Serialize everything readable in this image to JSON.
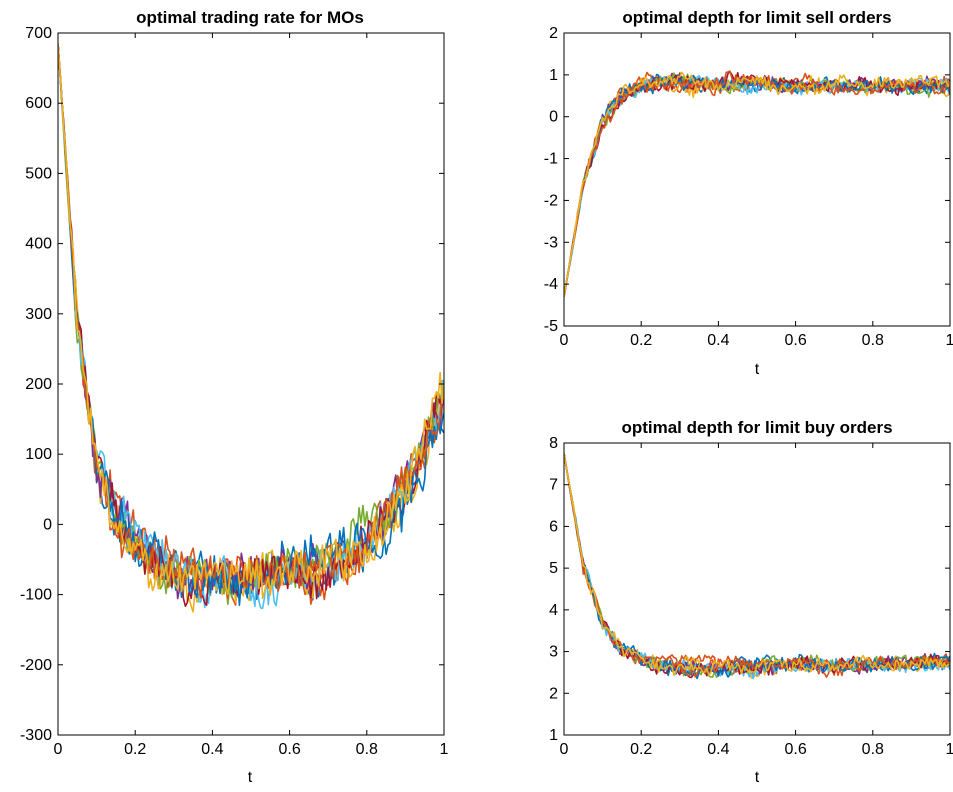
{
  "colors": [
    "#0072bd",
    "#d95319",
    "#edb120",
    "#7e2f8e",
    "#77ac30",
    "#4dbeee",
    "#a2142f"
  ],
  "chart_data": [
    {
      "type": "line",
      "title": "optimal trading rate for MOs",
      "xlabel": "t",
      "ylabel": "",
      "xlim": [
        0,
        1
      ],
      "ylim": [
        -300,
        700
      ],
      "xticks": [
        0,
        0.2,
        0.4,
        0.6,
        0.8,
        1
      ],
      "xtick_labels": [
        "0",
        "0.2",
        "0.4",
        "0.6",
        "0.8",
        "1"
      ],
      "yticks": [
        -300,
        -200,
        -100,
        0,
        100,
        200,
        300,
        400,
        500,
        600,
        700
      ],
      "ytick_labels": [
        "-300",
        "-200",
        "-100",
        "0",
        "100",
        "200",
        "300",
        "400",
        "500",
        "600",
        "700"
      ],
      "grid": false,
      "series_count": 10,
      "x": [
        0,
        0.05,
        0.1,
        0.15,
        0.2,
        0.25,
        0.3,
        0.35,
        0.4,
        0.45,
        0.5,
        0.55,
        0.6,
        0.65,
        0.7,
        0.75,
        0.8,
        0.85,
        0.9,
        0.95,
        1
      ],
      "mean_path": [
        685,
        280,
        80,
        10,
        -30,
        -50,
        -65,
        -75,
        -80,
        -82,
        -82,
        -80,
        -75,
        -70,
        -60,
        -45,
        -20,
        10,
        50,
        110,
        180
      ],
      "noise_amplitude": 55
    },
    {
      "type": "line",
      "title": "optimal depth for limit sell orders",
      "xlabel": "t",
      "ylabel": "",
      "xlim": [
        0,
        1
      ],
      "ylim": [
        -5,
        2
      ],
      "xticks": [
        0,
        0.2,
        0.4,
        0.6,
        0.8,
        1
      ],
      "xtick_labels": [
        "0",
        "0.2",
        "0.4",
        "0.6",
        "0.8",
        "1"
      ],
      "yticks": [
        -5,
        -4,
        -3,
        -2,
        -1,
        0,
        1,
        2
      ],
      "ytick_labels": [
        "-5",
        "-4",
        "-3",
        "-2",
        "-1",
        "0",
        "1",
        "2"
      ],
      "grid": false,
      "series_count": 10,
      "x": [
        0,
        0.05,
        0.1,
        0.15,
        0.2,
        0.25,
        0.3,
        0.35,
        0.4,
        0.45,
        0.5,
        0.55,
        0.6,
        0.65,
        0.7,
        0.75,
        0.8,
        0.85,
        0.9,
        0.95,
        1
      ],
      "mean_path": [
        -4.3,
        -1.6,
        -0.1,
        0.5,
        0.75,
        0.85,
        0.85,
        0.8,
        0.8,
        0.8,
        0.8,
        0.8,
        0.78,
        0.78,
        0.78,
        0.75,
        0.75,
        0.72,
        0.7,
        0.7,
        0.7
      ],
      "noise_amplitude": 0.3
    },
    {
      "type": "line",
      "title": "optimal depth for limit buy orders",
      "xlabel": "t",
      "ylabel": "",
      "xlim": [
        0,
        1
      ],
      "ylim": [
        1,
        8
      ],
      "xticks": [
        0,
        0.2,
        0.4,
        0.6,
        0.8,
        1
      ],
      "xtick_labels": [
        "0",
        "0.2",
        "0.4",
        "0.6",
        "0.8",
        "1"
      ],
      "yticks": [
        1,
        2,
        3,
        4,
        5,
        6,
        7,
        8
      ],
      "ytick_labels": [
        "1",
        "2",
        "3",
        "4",
        "5",
        "6",
        "7",
        "8"
      ],
      "grid": false,
      "series_count": 10,
      "x": [
        0,
        0.05,
        0.1,
        0.15,
        0.2,
        0.25,
        0.3,
        0.35,
        0.4,
        0.45,
        0.5,
        0.55,
        0.6,
        0.65,
        0.7,
        0.75,
        0.8,
        0.85,
        0.9,
        0.95,
        1
      ],
      "mean_path": [
        7.75,
        5.0,
        3.6,
        3.0,
        2.75,
        2.65,
        2.6,
        2.6,
        2.6,
        2.62,
        2.65,
        2.65,
        2.65,
        2.65,
        2.65,
        2.65,
        2.7,
        2.7,
        2.72,
        2.75,
        2.75
      ],
      "noise_amplitude": 0.3
    }
  ]
}
